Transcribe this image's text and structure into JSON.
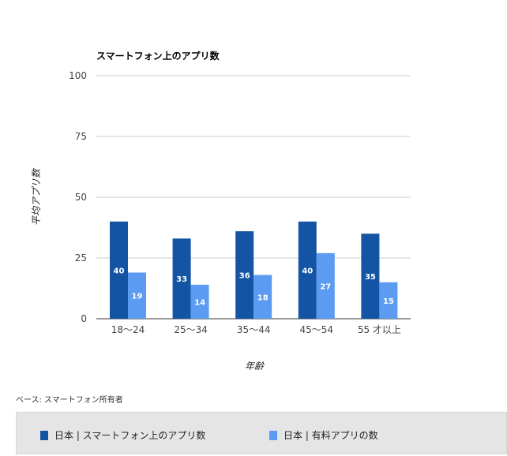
{
  "chart_data": {
    "type": "bar",
    "title": "スマートフォン上のアプリ数",
    "xlabel": "年齢",
    "ylabel": "平均アプリ数",
    "categories": [
      "18〜24",
      "25〜34",
      "35〜44",
      "45〜54",
      "55 才以上"
    ],
    "ylim": [
      0,
      100
    ],
    "yticks": [
      0,
      25,
      50,
      75,
      100
    ],
    "grid": true,
    "legend_position": "bottom",
    "series": [
      {
        "name": "日本 | スマートフォン上のアプリ数",
        "values": [
          40,
          33,
          36,
          40,
          35
        ],
        "labels": [
          "40",
          "33",
          "36",
          "40",
          "35"
        ],
        "color": "#1454a4"
      },
      {
        "name": "日本 | 有料アプリの数",
        "values": [
          19,
          14,
          18,
          27,
          15
        ],
        "labels": [
          "19",
          "14",
          "18",
          "27",
          "15"
        ],
        "color": "#5b9bf1"
      }
    ]
  },
  "footer": {
    "base_note": "ベース: スマートフォン所有者"
  }
}
